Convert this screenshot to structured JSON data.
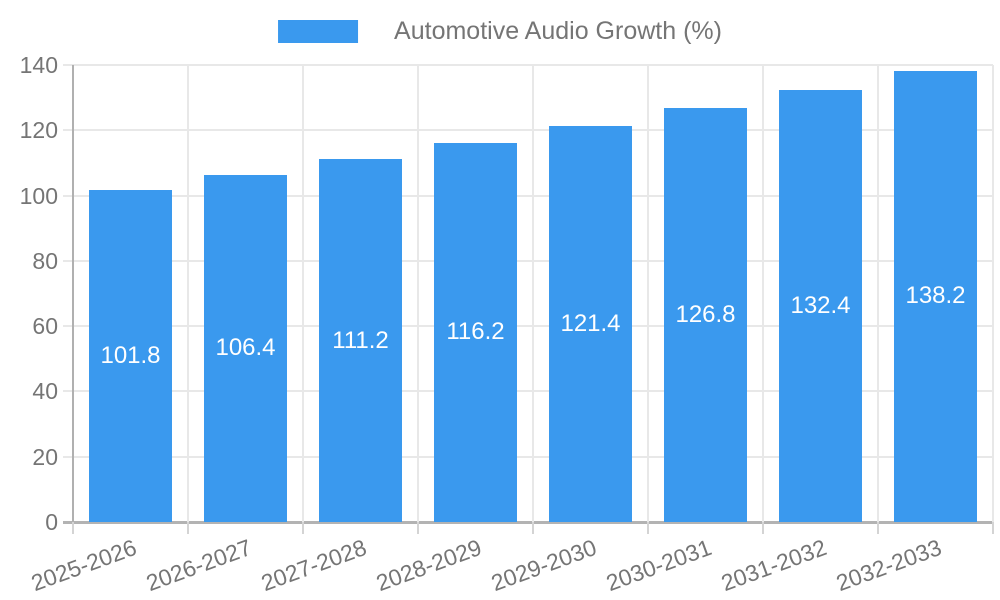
{
  "legend": {
    "label": "Automotive Audio Growth (%)"
  },
  "chart_data": {
    "type": "bar",
    "title": "",
    "categories": [
      "2025-2026",
      "2026-2027",
      "2027-2028",
      "2028-2029",
      "2029-2030",
      "2030-2031",
      "2031-2032",
      "2032-2033"
    ],
    "series": [
      {
        "name": "Automotive Audio Growth (%)",
        "values": [
          101.8,
          106.4,
          111.2,
          116.2,
          121.4,
          126.8,
          132.4,
          138.2
        ],
        "color": "#3a99ee"
      }
    ],
    "value_labels": [
      "101.8",
      "106.4",
      "111.2",
      "116.2",
      "121.4",
      "126.8",
      "132.4",
      "138.2"
    ],
    "ytick_labels": [
      "0",
      "20",
      "40",
      "60",
      "80",
      "100",
      "120",
      "140"
    ],
    "xlabel": "",
    "ylabel": "",
    "ylim": [
      0,
      140
    ],
    "ytick_step": 20,
    "grid": true,
    "legend_position": "top-center",
    "value_label_style": "white, centered inside bar"
  },
  "colors": {
    "bar": "#3a99ee",
    "grid": "#e8e8e8",
    "axis": "#b0b0b0",
    "baseline": "#b3b3b3",
    "tick_text": "#757575",
    "bar_value_text": "#ffffff",
    "background": "#ffffff"
  }
}
